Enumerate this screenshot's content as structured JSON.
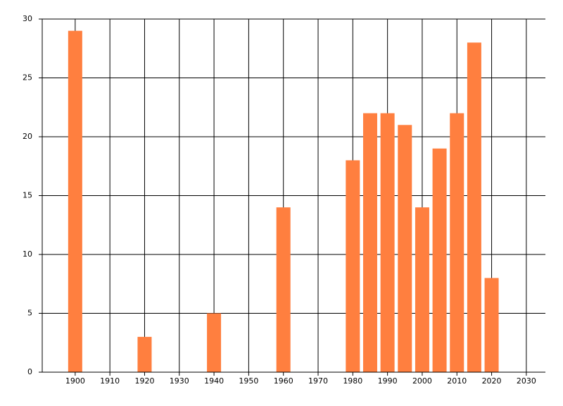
{
  "chart_data": {
    "type": "bar",
    "x": [
      1900,
      1920,
      1940,
      1960,
      1980,
      1985,
      1990,
      1995,
      2000,
      2005,
      2010,
      2015,
      2020
    ],
    "values": [
      29,
      3,
      5,
      14,
      18,
      22,
      22,
      21,
      14,
      19,
      22,
      28,
      8
    ],
    "color": "#ff7f3f",
    "xlim": [
      1890.5,
      2035.5
    ],
    "xticks": [
      1900,
      1910,
      1920,
      1930,
      1940,
      1950,
      1960,
      1970,
      1980,
      1990,
      2000,
      2010,
      2020,
      2030
    ],
    "ylim": [
      0,
      30
    ],
    "yticks": [
      0,
      5,
      10,
      15,
      20,
      25,
      30
    ],
    "grid": true
  }
}
